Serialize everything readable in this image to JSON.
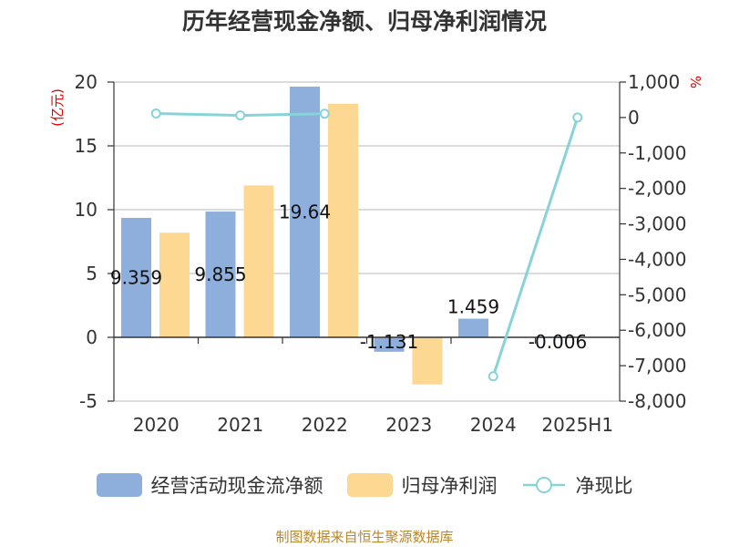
{
  "title": "历年经营现金净额、归母净利润情况",
  "source": "制图数据来自恒生聚源数据库",
  "colors": {
    "operating_cf": "#8eaedc",
    "net_profit": "#fdd892",
    "ratio": "#87d3d8",
    "unit": "#e00000"
  },
  "chart_data": {
    "type": "bar",
    "title": "历年经营现金净额、归母净利润情况",
    "categories": [
      "2020",
      "2021",
      "2022",
      "2023",
      "2024",
      "2025H1"
    ],
    "y_left": {
      "unit": "(亿元)",
      "lim": [
        -5,
        20
      ],
      "ticks": [
        -5,
        0,
        5,
        10,
        15,
        20
      ]
    },
    "y_right": {
      "unit": "%",
      "lim": [
        -8000,
        1000
      ],
      "ticks": [
        1000,
        0,
        -1000,
        -2000,
        -3000,
        -4000,
        -5000,
        -6000,
        -7000,
        -8000
      ],
      "tick_labels": [
        "1,000",
        "0",
        "-1,000",
        "-2,000",
        "-3,000",
        "-4,000",
        "-5,000",
        "-6,000",
        "-7,000",
        "-8,000"
      ]
    },
    "series": [
      {
        "name": "经营活动现金流净额",
        "type": "bar",
        "axis": "left",
        "values": [
          9.359,
          9.855,
          19.64,
          -1.131,
          1.459,
          -0.006
        ],
        "labels": [
          "9.359",
          "9.855",
          "19.64",
          "-1.131",
          "1.459",
          "-0.006"
        ]
      },
      {
        "name": "归母净利润",
        "type": "bar",
        "axis": "left",
        "values": [
          8.2,
          11.9,
          18.3,
          -3.7,
          null,
          null
        ]
      },
      {
        "name": "净现比",
        "type": "line",
        "axis": "right",
        "values": [
          114,
          59,
          107,
          null,
          -7300,
          0
        ]
      }
    ],
    "grid": true,
    "legend_position": "bottom"
  }
}
